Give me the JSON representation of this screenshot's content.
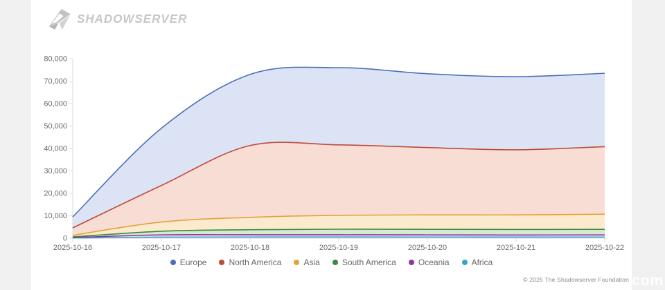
{
  "header": {
    "logo_text": "SHADOWSERVER"
  },
  "chart_data": {
    "type": "area",
    "stacked": true,
    "title": "",
    "xlabel": "",
    "ylabel": "",
    "x": [
      "2025-10-16",
      "2025-10-17",
      "2025-10-18",
      "2025-10-19",
      "2025-10-20",
      "2025-10-21",
      "2025-10-22"
    ],
    "series": [
      {
        "name": "Europe",
        "color": "#4d6fb8",
        "fill": "#dbe3f5",
        "values": [
          4900,
          25500,
          31700,
          34400,
          32900,
          32600,
          32700
        ]
      },
      {
        "name": "North America",
        "color": "#bf4a38",
        "fill": "#f8ddd5",
        "values": [
          3300,
          16300,
          32000,
          31400,
          30000,
          29000,
          30100
        ]
      },
      {
        "name": "Asia",
        "color": "#e2a23b",
        "fill": "#fbeacd",
        "values": [
          700,
          4100,
          5500,
          6200,
          6450,
          6500,
          6750
        ]
      },
      {
        "name": "South America",
        "color": "#398a3c",
        "fill": "#d6e9d1",
        "values": [
          300,
          1600,
          2250,
          2450,
          2450,
          2450,
          2450
        ]
      },
      {
        "name": "Oceania",
        "color": "#90369f",
        "fill": "#e6cfeb",
        "values": [
          180,
          1050,
          1050,
          1030,
          1000,
          970,
          1000
        ]
      },
      {
        "name": "Africa",
        "color": "#36a6c6",
        "fill": "#d2e6f6",
        "values": [
          120,
          450,
          500,
          520,
          500,
          480,
          500
        ]
      }
    ],
    "stack_order_bottom_to_top": [
      "Africa",
      "Oceania",
      "South America",
      "Asia",
      "North America",
      "Europe"
    ],
    "ylim": [
      0,
      80000
    ],
    "y_tick_step": 10000,
    "y_tick_labels": [
      "0",
      "10,000",
      "20,000",
      "30,000",
      "40,000",
      "50,000",
      "60,000",
      "70,000",
      "80,000"
    ],
    "grid": false,
    "legend_position": "bottom",
    "axis_color": "#d9d9d9",
    "tick_label_color": "#696969"
  },
  "footer": {
    "copyright": "© 2025 The Shadowserver Foundation"
  },
  "watermark": {
    "text": "com"
  }
}
